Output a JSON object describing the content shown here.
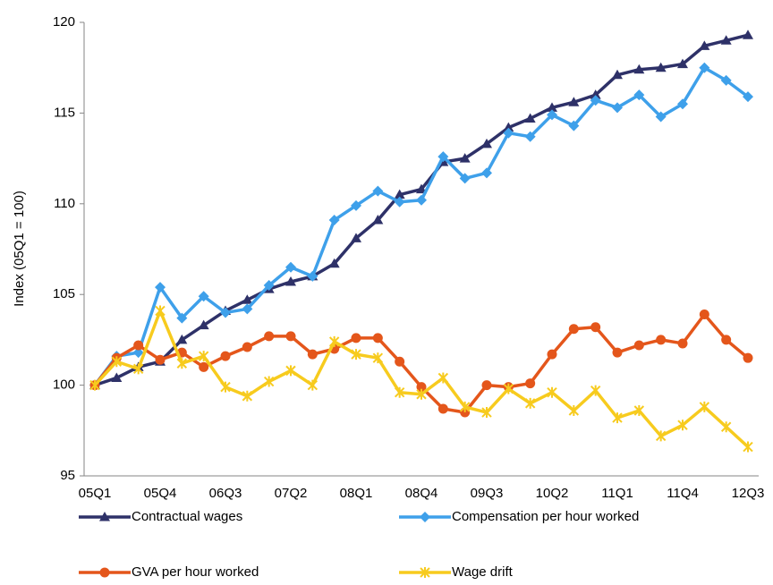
{
  "chart_data": {
    "type": "line",
    "y_label": "Index (05Q1 = 100)",
    "categories": [
      "05Q1",
      null,
      null,
      "05Q4",
      null,
      null,
      "06Q3",
      null,
      null,
      "07Q2",
      null,
      null,
      "08Q1",
      null,
      null,
      "08Q4",
      null,
      null,
      "09Q3",
      null,
      null,
      "10Q2",
      null,
      null,
      "11Q1",
      null,
      null,
      "11Q4",
      null,
      null,
      "12Q3"
    ],
    "ylim": [
      95,
      120
    ],
    "yticks": [
      95,
      100,
      105,
      110,
      115,
      120
    ],
    "grid": false,
    "legend": "bottom",
    "series": [
      {
        "name": "Contractual wages",
        "color": "#2e3168",
        "marker": "triangle",
        "values": [
          100,
          100.4,
          101.0,
          101.3,
          102.5,
          103.3,
          104.1,
          104.7,
          105.3,
          105.7,
          106.0,
          106.7,
          108.1,
          109.1,
          110.5,
          110.8,
          112.3,
          112.5,
          113.3,
          114.2,
          114.7,
          115.3,
          115.6,
          116.0,
          117.1,
          117.4,
          117.5,
          117.7,
          118.7,
          119.0,
          119.3
        ]
      },
      {
        "name": "Compensation per hour worked",
        "color": "#3ea0ea",
        "marker": "diamond",
        "values": [
          100,
          101.6,
          101.8,
          105.4,
          103.7,
          104.9,
          104.0,
          104.2,
          105.5,
          106.5,
          106.0,
          109.1,
          109.9,
          110.7,
          110.1,
          110.2,
          112.6,
          111.4,
          111.7,
          113.9,
          113.7,
          114.9,
          114.3,
          115.7,
          115.3,
          116.0,
          114.8,
          115.5,
          117.5,
          116.8,
          115.9
        ]
      },
      {
        "name": "GVA per hour worked",
        "color": "#e4561b",
        "marker": "circle",
        "values": [
          100,
          101.5,
          102.2,
          101.4,
          101.8,
          101.0,
          101.6,
          102.1,
          102.7,
          102.7,
          101.7,
          102.0,
          102.6,
          102.6,
          101.3,
          99.9,
          98.7,
          98.5,
          100.0,
          99.9,
          100.1,
          101.7,
          103.1,
          103.2,
          101.8,
          102.2,
          102.5,
          102.3,
          103.9,
          102.5,
          101.5
        ]
      },
      {
        "name": "Wage drift",
        "color": "#f7cb1e",
        "marker": "x",
        "values": [
          100,
          101.3,
          100.9,
          104.1,
          101.2,
          101.6,
          99.9,
          99.4,
          100.2,
          100.8,
          100.0,
          102.4,
          101.7,
          101.5,
          99.6,
          99.5,
          100.4,
          98.8,
          98.5,
          99.8,
          99.0,
          99.6,
          98.6,
          99.7,
          98.2,
          98.6,
          97.2,
          97.8,
          98.8,
          97.7,
          96.6
        ]
      }
    ]
  }
}
